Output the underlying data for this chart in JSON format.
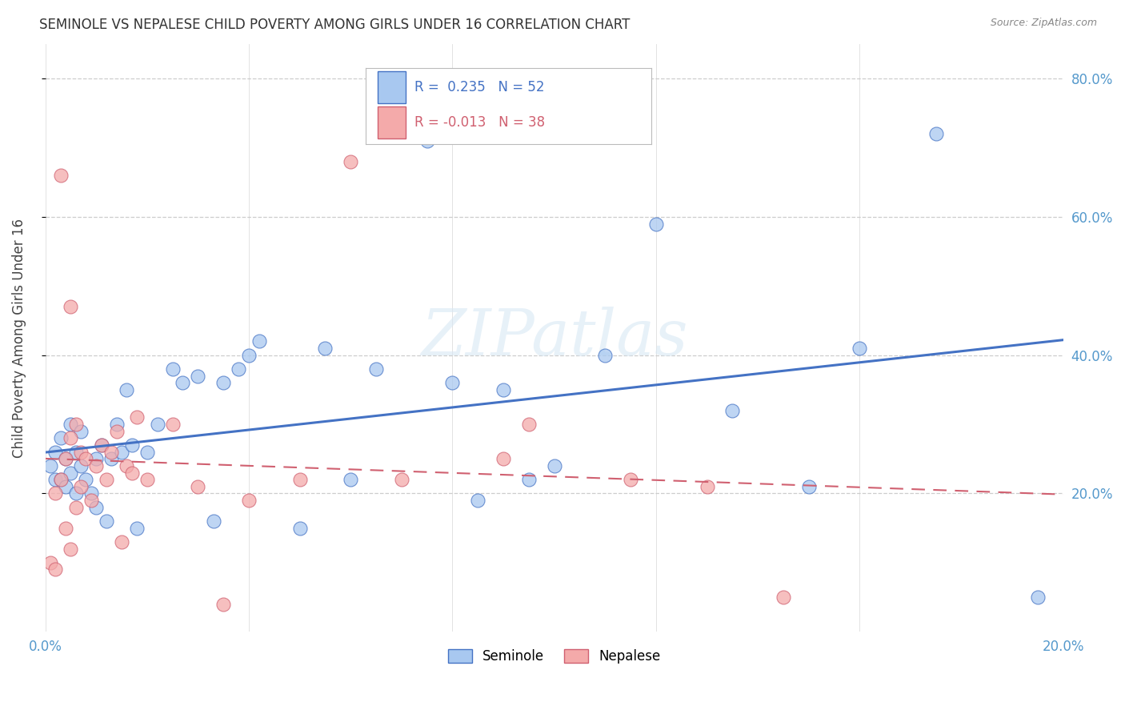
{
  "title": "SEMINOLE VS NEPALESE CHILD POVERTY AMONG GIRLS UNDER 16 CORRELATION CHART",
  "source": "Source: ZipAtlas.com",
  "ylabel": "Child Poverty Among Girls Under 16",
  "xlim": [
    0.0,
    0.2
  ],
  "ylim": [
    0.0,
    0.85
  ],
  "yticks": [
    0.2,
    0.4,
    0.6,
    0.8
  ],
  "xticks": [
    0.0,
    0.04,
    0.08,
    0.12,
    0.16,
    0.2
  ],
  "seminole_R": 0.235,
  "seminole_N": 52,
  "nepalese_R": -0.013,
  "nepalese_N": 38,
  "seminole_color": "#A8C8F0",
  "nepalese_color": "#F4AAAA",
  "trend_seminole_color": "#4472C4",
  "trend_nepalese_color": "#D06070",
  "watermark": "ZIPatlas",
  "background_color": "#FFFFFF",
  "grid_color": "#C8C8C8",
  "axis_label_color": "#5599CC",
  "seminole_x": [
    0.001,
    0.002,
    0.002,
    0.003,
    0.003,
    0.004,
    0.004,
    0.005,
    0.005,
    0.006,
    0.006,
    0.007,
    0.007,
    0.008,
    0.009,
    0.01,
    0.01,
    0.011,
    0.012,
    0.013,
    0.014,
    0.015,
    0.016,
    0.017,
    0.018,
    0.02,
    0.022,
    0.025,
    0.027,
    0.03,
    0.033,
    0.035,
    0.038,
    0.04,
    0.042,
    0.05,
    0.055,
    0.06,
    0.065,
    0.075,
    0.08,
    0.085,
    0.09,
    0.095,
    0.1,
    0.11,
    0.12,
    0.135,
    0.15,
    0.16,
    0.175,
    0.195
  ],
  "seminole_y": [
    0.24,
    0.26,
    0.22,
    0.28,
    0.22,
    0.25,
    0.21,
    0.3,
    0.23,
    0.26,
    0.2,
    0.29,
    0.24,
    0.22,
    0.2,
    0.25,
    0.18,
    0.27,
    0.16,
    0.25,
    0.3,
    0.26,
    0.35,
    0.27,
    0.15,
    0.26,
    0.3,
    0.38,
    0.36,
    0.37,
    0.16,
    0.36,
    0.38,
    0.4,
    0.42,
    0.15,
    0.41,
    0.22,
    0.38,
    0.71,
    0.36,
    0.19,
    0.35,
    0.22,
    0.24,
    0.4,
    0.59,
    0.32,
    0.21,
    0.41,
    0.72,
    0.05
  ],
  "nepalese_x": [
    0.001,
    0.002,
    0.002,
    0.003,
    0.004,
    0.004,
    0.005,
    0.005,
    0.006,
    0.006,
    0.007,
    0.007,
    0.008,
    0.009,
    0.01,
    0.011,
    0.012,
    0.013,
    0.014,
    0.015,
    0.016,
    0.017,
    0.018,
    0.02,
    0.025,
    0.03,
    0.035,
    0.04,
    0.05,
    0.06,
    0.07,
    0.09,
    0.095,
    0.115,
    0.13,
    0.145,
    0.005,
    0.003
  ],
  "nepalese_y": [
    0.1,
    0.09,
    0.2,
    0.22,
    0.25,
    0.15,
    0.28,
    0.12,
    0.3,
    0.18,
    0.26,
    0.21,
    0.25,
    0.19,
    0.24,
    0.27,
    0.22,
    0.26,
    0.29,
    0.13,
    0.24,
    0.23,
    0.31,
    0.22,
    0.3,
    0.21,
    0.04,
    0.19,
    0.22,
    0.68,
    0.22,
    0.25,
    0.3,
    0.22,
    0.21,
    0.05,
    0.47,
    0.66
  ]
}
